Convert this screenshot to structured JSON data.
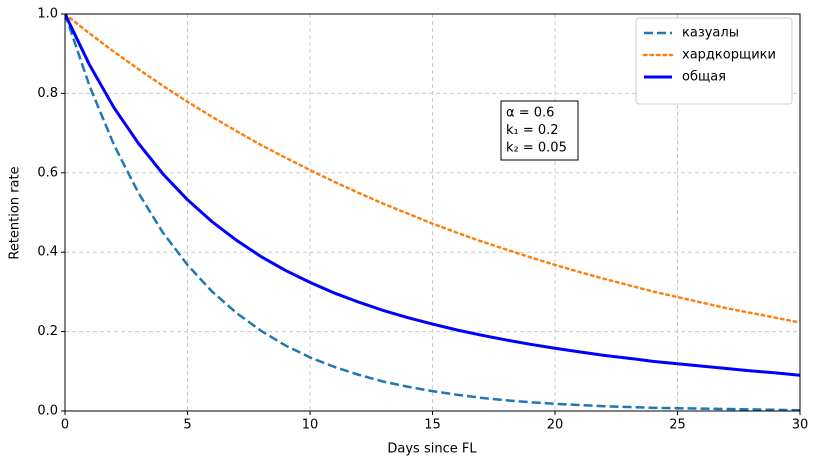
{
  "chart_data": {
    "type": "line",
    "x_label": "Days since FL",
    "y_label": "Retention rate",
    "x": [
      0,
      1,
      2,
      3,
      4,
      5,
      6,
      7,
      8,
      9,
      10,
      11,
      12,
      13,
      14,
      15,
      16,
      17,
      18,
      19,
      20,
      21,
      22,
      23,
      24,
      25,
      26,
      27,
      28,
      29,
      30
    ],
    "series": [
      {
        "name": "казуалы",
        "color": "#1f77b4",
        "linestyle": "dashed",
        "values": [
          1,
          0.819,
          0.67,
          0.549,
          0.449,
          0.368,
          0.301,
          0.247,
          0.202,
          0.165,
          0.135,
          0.111,
          0.091,
          0.074,
          0.061,
          0.05,
          0.041,
          0.033,
          0.027,
          0.022,
          0.018,
          0.015,
          0.012,
          0.01,
          0.008,
          0.007,
          0.006,
          0.005,
          0.004,
          0.003,
          0.002
        ]
      },
      {
        "name": "хардкорщики",
        "color": "#ff7f0e",
        "linestyle": "dotted",
        "values": [
          1,
          0.951,
          0.905,
          0.861,
          0.819,
          0.779,
          0.741,
          0.705,
          0.67,
          0.638,
          0.607,
          0.577,
          0.549,
          0.522,
          0.497,
          0.472,
          0.449,
          0.427,
          0.407,
          0.387,
          0.368,
          0.35,
          0.333,
          0.317,
          0.301,
          0.287,
          0.273,
          0.259,
          0.247,
          0.235,
          0.223
        ]
      },
      {
        "name": "общая",
        "color": "#0000ff",
        "linestyle": "solid",
        "values": [
          1,
          0.872,
          0.764,
          0.674,
          0.597,
          0.532,
          0.477,
          0.43,
          0.389,
          0.354,
          0.324,
          0.297,
          0.274,
          0.253,
          0.235,
          0.219,
          0.204,
          0.191,
          0.179,
          0.168,
          0.158,
          0.149,
          0.14,
          0.133,
          0.125,
          0.119,
          0.113,
          0.107,
          0.101,
          0.096,
          0.09
        ]
      }
    ],
    "xlim": [
      0,
      30
    ],
    "xticks": [
      0,
      5,
      10,
      15,
      20,
      25,
      30
    ],
    "ylim": [
      0,
      1
    ],
    "yticks": [
      {
        "value": 0,
        "label": "0.0"
      },
      {
        "value": 0.2,
        "label": "0.2"
      },
      {
        "value": 0.4,
        "label": "0.4"
      },
      {
        "value": 0.6,
        "label": "0.6"
      },
      {
        "value": 0.8,
        "label": "0.8"
      },
      {
        "value": 1,
        "label": "1.0"
      }
    ],
    "grid": true,
    "legend": "upper right",
    "annotation": [
      "α = 0.6",
      "k₁ = 0.2",
      "k₂ = 0.05"
    ]
  }
}
